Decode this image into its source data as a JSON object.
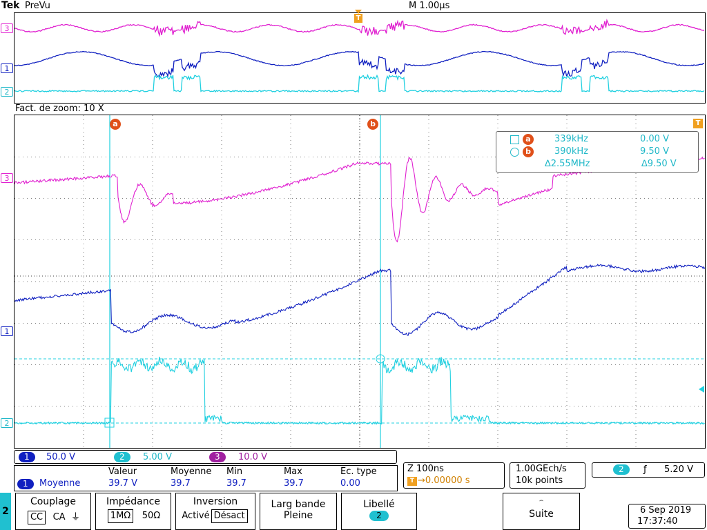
{
  "header": {
    "brand": "Tek",
    "mode": "PreVu",
    "timebase": "M 1.00µs",
    "trigger_marker": "T"
  },
  "zoom_factor": "Fact. de zoom: 10 X",
  "colors": {
    "ch1": "#1020c0",
    "ch2": "#20d0e0",
    "ch3": "#e020d0",
    "cursor": "#e0501a",
    "readout": "#20b8c8",
    "grid": "#000000"
  },
  "channel_markers": {
    "ch1": "1",
    "ch2": "2",
    "ch3": "3"
  },
  "cursors": {
    "a_label": "a",
    "b_label": "b",
    "readout": {
      "a_freq": "339kHz",
      "a_volt": "0.00 V",
      "b_freq": "390kHz",
      "b_volt": "9.50 V",
      "delta_freq": "∆2.55MHz",
      "delta_volt": "∆9.50 V"
    }
  },
  "scales": {
    "ch1": {
      "num": "1",
      "value": "50.0 V"
    },
    "ch2": {
      "num": "2",
      "value": "5.00 V"
    },
    "ch3": {
      "num": "3",
      "value": "10.0 V"
    }
  },
  "measurement": {
    "headers": [
      "Valeur",
      "Moyenne",
      "Min",
      "Max",
      "Ec. type"
    ],
    "channel": "1",
    "name": "Moyenne",
    "values": [
      "39.7 V",
      "39.7",
      "39.7",
      "39.7",
      "0.00"
    ]
  },
  "zoom_info": {
    "scale": "Z 100ns",
    "position": "→0.00000 s"
  },
  "acquisition": {
    "rate": "1.00GEch/s",
    "points": "10k points"
  },
  "trigger": {
    "channel": "2",
    "slope": "ƒ",
    "level": "5.20 V"
  },
  "menu": {
    "side_channel": "2",
    "couplage": {
      "label": "Couplage",
      "options": [
        "CC",
        "CA",
        "⏚"
      ]
    },
    "impedance": {
      "label": "Impédance",
      "options": [
        "1MΩ",
        "50Ω"
      ]
    },
    "inversion": {
      "label": "Inversion",
      "options": [
        "Activé",
        "Désact"
      ]
    },
    "bandwidth": {
      "label1": "Larg bande",
      "label2": "Pleine"
    },
    "libelle": {
      "label": "Libellé",
      "value": "2"
    },
    "suite": {
      "label": "Suite"
    }
  },
  "datetime": {
    "date": "6 Sep  2019",
    "time": "17:37:40"
  }
}
